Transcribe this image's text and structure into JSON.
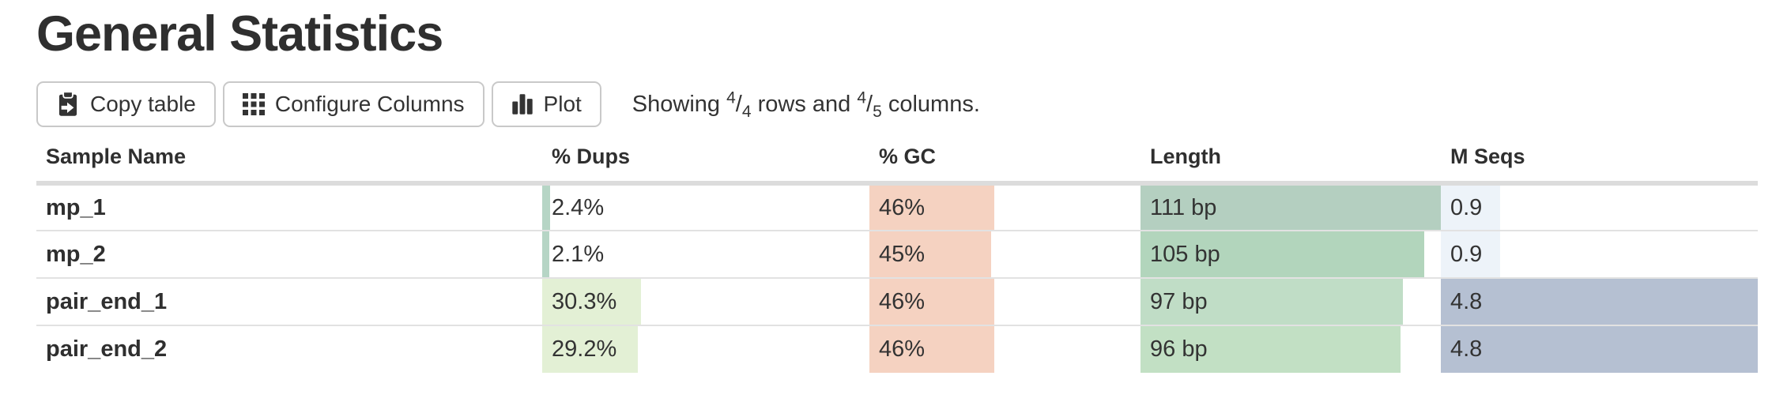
{
  "page": {
    "title": "General Statistics"
  },
  "toolbar": {
    "copy_label": "Copy table",
    "configure_label": "Configure Columns",
    "plot_label": "Plot",
    "icons": {
      "copy": "clipboard-icon",
      "configure": "grid-icon",
      "plot": "bar-chart-icon"
    },
    "showing": {
      "prefix": "Showing",
      "rows_shown": "4",
      "rows_total": "4",
      "middle": "rows and",
      "cols_shown": "4",
      "cols_total": "5",
      "suffix": "columns."
    }
  },
  "colors": {
    "text": "#333333",
    "button_border": "#c9c9c9",
    "header_border": "#dcdcdc",
    "row_border": "#e2e2e2",
    "dups_low_green": "#b6d5c5",
    "dups_high_green": "#e3f0d5",
    "gc_salmon": "#f5d2c1",
    "length_green_dark": "#b4cfc0",
    "length_green_mid": "#b2d5bc",
    "length_green_light": "#c0ddc6",
    "length_green_lightest": "#c2e0c4",
    "mseqs_pale_blue": "#edf3f9",
    "mseqs_gray_blue": "#b5c0d2"
  },
  "table": {
    "columns": [
      {
        "label": "Sample Name"
      },
      {
        "label": "% Dups"
      },
      {
        "label": "% GC"
      },
      {
        "label": "Length"
      },
      {
        "label": "M Seqs"
      }
    ],
    "rows": [
      {
        "sample": "mp_1",
        "cells": [
          {
            "text": "2.4%",
            "bar_width": "2.4%",
            "bar_color": "#b6d5c5"
          },
          {
            "text": "46%",
            "bar_width": "46%",
            "bar_color": "#f5d2c1"
          },
          {
            "text": "111 bp",
            "bar_width": "100%",
            "bar_color": "#b4cfc0"
          },
          {
            "text": "0.9",
            "bar_width": "18.75%",
            "bar_color": "#edf3f9"
          }
        ]
      },
      {
        "sample": "mp_2",
        "cells": [
          {
            "text": "2.1%",
            "bar_width": "2.1%",
            "bar_color": "#b6d5c5"
          },
          {
            "text": "45%",
            "bar_width": "45%",
            "bar_color": "#f5d2c1"
          },
          {
            "text": "105 bp",
            "bar_width": "94.6%",
            "bar_color": "#b2d5bc"
          },
          {
            "text": "0.9",
            "bar_width": "18.75%",
            "bar_color": "#edf3f9"
          }
        ]
      },
      {
        "sample": "pair_end_1",
        "cells": [
          {
            "text": "30.3%",
            "bar_width": "30.3%",
            "bar_color": "#e3f0d5"
          },
          {
            "text": "46%",
            "bar_width": "46%",
            "bar_color": "#f5d2c1"
          },
          {
            "text": "97 bp",
            "bar_width": "87.4%",
            "bar_color": "#c0ddc6"
          },
          {
            "text": "4.8",
            "bar_width": "100%",
            "bar_color": "#b5c0d2"
          }
        ]
      },
      {
        "sample": "pair_end_2",
        "cells": [
          {
            "text": "29.2%",
            "bar_width": "29.2%",
            "bar_color": "#e3f0d5"
          },
          {
            "text": "46%",
            "bar_width": "46%",
            "bar_color": "#f5d2c1"
          },
          {
            "text": "96 bp",
            "bar_width": "86.5%",
            "bar_color": "#c2e0c4"
          },
          {
            "text": "4.8",
            "bar_width": "100%",
            "bar_color": "#b5c0d2"
          }
        ]
      }
    ]
  }
}
